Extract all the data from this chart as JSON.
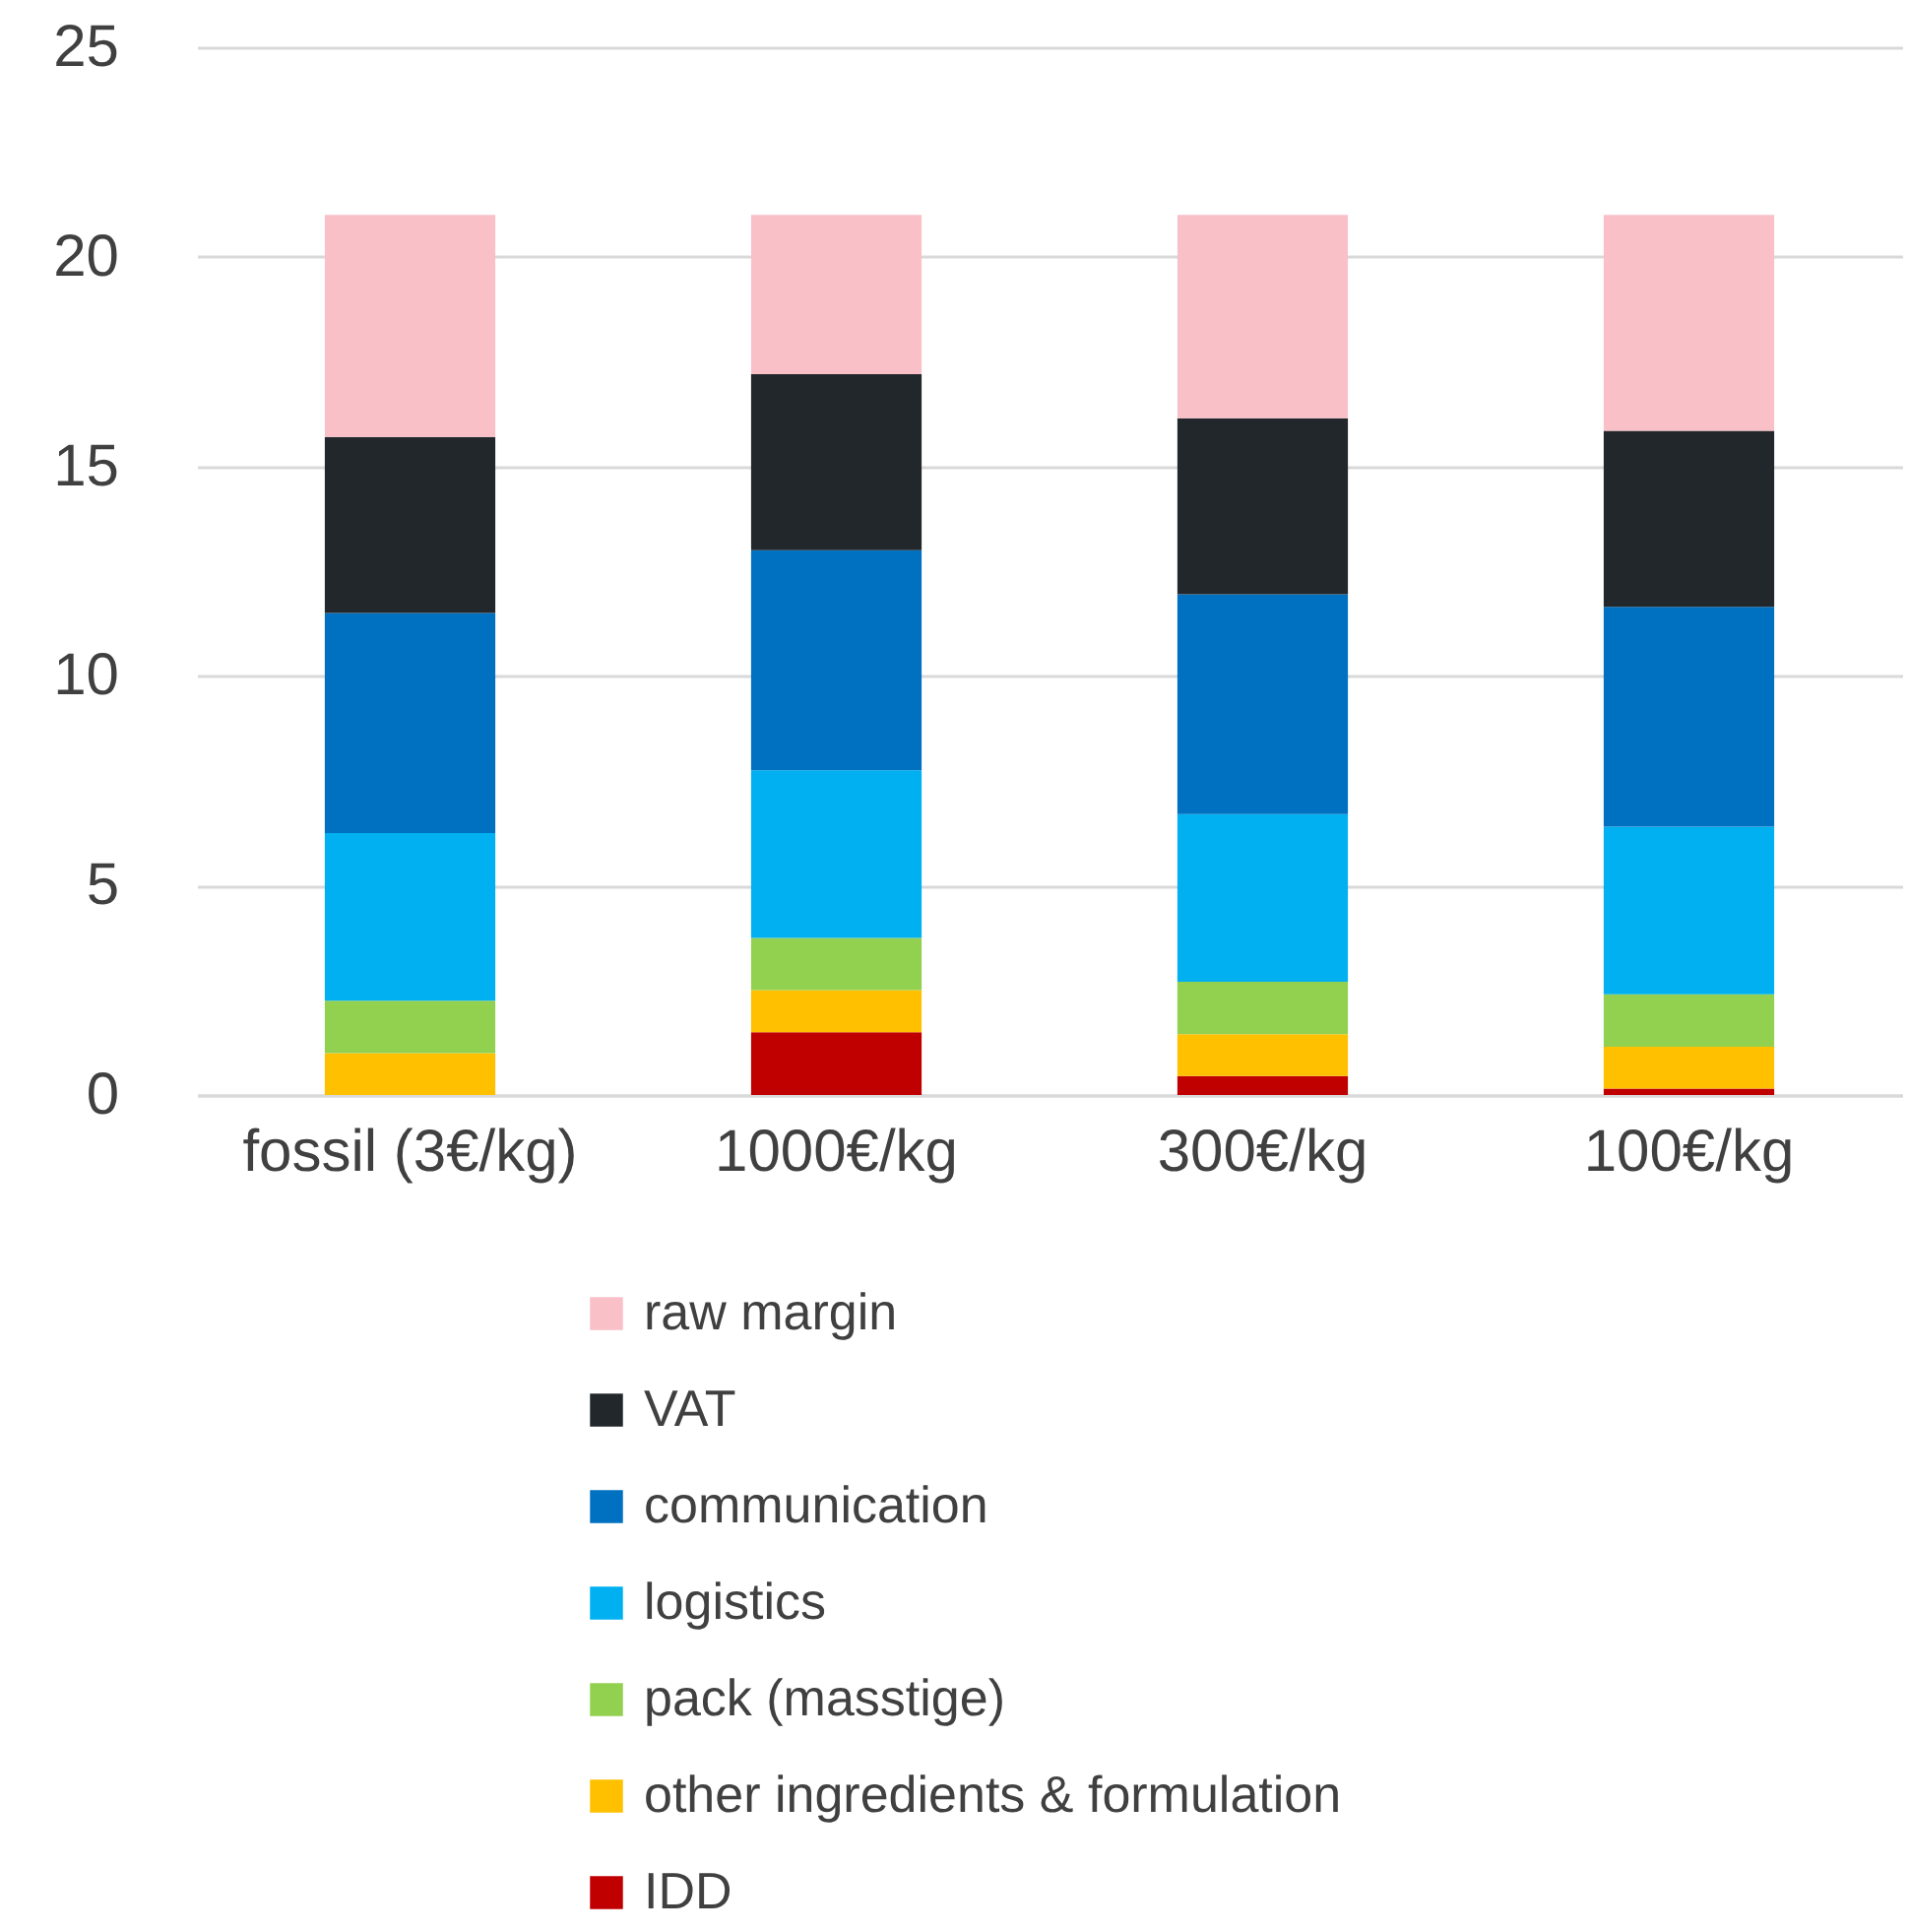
{
  "chart_data": {
    "type": "bar",
    "stacked": true,
    "categories": [
      "fossil (3€/kg)",
      "1000€/kg",
      "300€/kg",
      "100€/kg"
    ],
    "series": [
      {
        "name": "IDD",
        "color": "#c00000",
        "values": [
          0,
          1.5,
          0.45,
          0.15
        ]
      },
      {
        "name": "other ingredients & formulation",
        "color": "#ffc000",
        "values": [
          1.0,
          1.0,
          1.0,
          1.0
        ]
      },
      {
        "name": "pack (masstige)",
        "color": "#92d050",
        "values": [
          1.25,
          1.25,
          1.25,
          1.25
        ]
      },
      {
        "name": "logistics",
        "color": "#00b0f0",
        "values": [
          4.0,
          4.0,
          4.0,
          4.0
        ]
      },
      {
        "name": "communication",
        "color": "#0070c0",
        "values": [
          5.25,
          5.25,
          5.25,
          5.25
        ]
      },
      {
        "name": "VAT",
        "color": "#22272b",
        "values": [
          4.2,
          4.2,
          4.2,
          4.2
        ]
      },
      {
        "name": "raw margin",
        "color": "#f9c0c8",
        "values": [
          5.3,
          3.8,
          4.85,
          5.15
        ]
      }
    ],
    "ylim": [
      0,
      25
    ],
    "yticks": [
      0,
      5,
      10,
      15,
      20,
      25
    ],
    "grid": "y",
    "legend": "bottom"
  }
}
